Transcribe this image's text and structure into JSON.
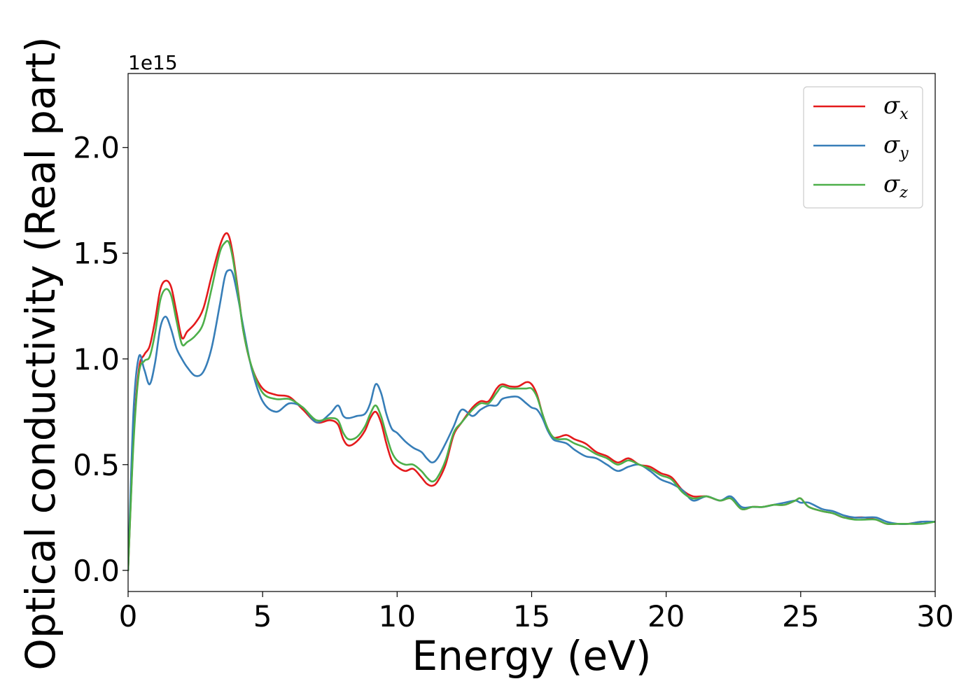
{
  "chart_data": {
    "type": "line",
    "xlabel": "Energy (eV)",
    "ylabel": "Optical conductivity (Real part)",
    "y_offset_text": "1e15",
    "xlim": [
      0,
      30
    ],
    "ylim": [
      -0.1,
      2.35
    ],
    "xticks": [
      0,
      5,
      10,
      15,
      20,
      25,
      30
    ],
    "xtick_labels": [
      "0",
      "5",
      "10",
      "15",
      "20",
      "25",
      "30"
    ],
    "yticks": [
      0.0,
      0.5,
      1.0,
      1.5,
      2.0
    ],
    "ytick_labels": [
      "0.0",
      "0.5",
      "1.0",
      "1.5",
      "2.0"
    ],
    "grid": false,
    "legend_position": "top-right",
    "series": [
      {
        "name": "σ",
        "subscript": "x",
        "color": "#e41a1c",
        "x": [
          0,
          0.2,
          0.4,
          0.6,
          0.8,
          1.0,
          1.2,
          1.4,
          1.6,
          1.8,
          2.0,
          2.2,
          2.5,
          2.8,
          3.1,
          3.4,
          3.6,
          3.75,
          3.9,
          4.1,
          4.3,
          4.6,
          5.0,
          5.5,
          6.0,
          6.5,
          7.0,
          7.5,
          7.8,
          8.0,
          8.2,
          8.5,
          8.8,
          9.0,
          9.2,
          9.4,
          9.6,
          9.8,
          10.0,
          10.3,
          10.6,
          10.9,
          11.1,
          11.3,
          11.5,
          11.8,
          12.1,
          12.4,
          12.8,
          13.1,
          13.4,
          13.7,
          13.9,
          14.2,
          14.5,
          14.8,
          15.0,
          15.2,
          15.4,
          15.6,
          15.8,
          16.0,
          16.3,
          16.6,
          17.0,
          17.4,
          17.8,
          18.2,
          18.6,
          19.0,
          19.4,
          19.8,
          20.2,
          20.6,
          21.0,
          21.5,
          22.0,
          22.4,
          22.8,
          23.2,
          23.6,
          24.0,
          24.4,
          24.8,
          25.0,
          25.3,
          25.8,
          26.2,
          26.6,
          27.0,
          27.4,
          27.8,
          28.2,
          28.6,
          29.0,
          29.5,
          30.0
        ],
        "values": [
          0.0,
          0.62,
          0.95,
          1.02,
          1.06,
          1.18,
          1.33,
          1.37,
          1.34,
          1.22,
          1.1,
          1.13,
          1.17,
          1.24,
          1.39,
          1.53,
          1.59,
          1.58,
          1.49,
          1.31,
          1.12,
          0.96,
          0.86,
          0.83,
          0.82,
          0.76,
          0.7,
          0.71,
          0.69,
          0.62,
          0.59,
          0.61,
          0.66,
          0.72,
          0.75,
          0.7,
          0.6,
          0.52,
          0.49,
          0.47,
          0.48,
          0.44,
          0.41,
          0.4,
          0.42,
          0.5,
          0.64,
          0.7,
          0.77,
          0.8,
          0.8,
          0.86,
          0.88,
          0.87,
          0.87,
          0.89,
          0.88,
          0.83,
          0.74,
          0.67,
          0.63,
          0.63,
          0.64,
          0.62,
          0.6,
          0.56,
          0.54,
          0.51,
          0.53,
          0.5,
          0.49,
          0.46,
          0.44,
          0.38,
          0.35,
          0.35,
          0.33,
          0.34,
          0.29,
          0.3,
          0.3,
          0.31,
          0.31,
          0.33,
          0.34,
          0.3,
          0.28,
          0.27,
          0.25,
          0.25,
          0.25,
          0.24,
          0.22,
          0.22,
          0.22,
          0.23,
          0.23
        ]
      },
      {
        "name": "σ",
        "subscript": "y",
        "color": "#377eb8",
        "x": [
          0,
          0.2,
          0.4,
          0.6,
          0.8,
          1.0,
          1.2,
          1.4,
          1.6,
          1.8,
          2.0,
          2.2,
          2.5,
          2.8,
          3.1,
          3.4,
          3.6,
          3.75,
          3.9,
          4.1,
          4.3,
          4.6,
          5.0,
          5.5,
          6.0,
          6.5,
          7.0,
          7.5,
          7.8,
          8.0,
          8.2,
          8.5,
          8.8,
          9.0,
          9.2,
          9.4,
          9.6,
          9.8,
          10.0,
          10.3,
          10.6,
          10.9,
          11.1,
          11.3,
          11.5,
          11.8,
          12.1,
          12.4,
          12.8,
          13.1,
          13.4,
          13.7,
          13.9,
          14.2,
          14.5,
          14.8,
          15.0,
          15.2,
          15.4,
          15.6,
          15.8,
          16.0,
          16.3,
          16.6,
          17.0,
          17.4,
          17.8,
          18.2,
          18.6,
          19.0,
          19.4,
          19.8,
          20.2,
          20.6,
          21.0,
          21.5,
          22.0,
          22.4,
          22.8,
          23.2,
          23.6,
          24.0,
          24.4,
          24.8,
          25.0,
          25.3,
          25.8,
          26.2,
          26.6,
          27.0,
          27.4,
          27.8,
          28.2,
          28.6,
          29.0,
          29.5,
          30.0
        ],
        "values": [
          0.0,
          0.75,
          1.01,
          0.95,
          0.88,
          0.98,
          1.15,
          1.2,
          1.14,
          1.05,
          1.0,
          0.96,
          0.92,
          0.94,
          1.05,
          1.25,
          1.39,
          1.42,
          1.4,
          1.28,
          1.14,
          0.95,
          0.8,
          0.75,
          0.79,
          0.77,
          0.7,
          0.74,
          0.78,
          0.73,
          0.72,
          0.73,
          0.74,
          0.79,
          0.88,
          0.84,
          0.74,
          0.67,
          0.65,
          0.61,
          0.58,
          0.56,
          0.53,
          0.51,
          0.53,
          0.6,
          0.68,
          0.76,
          0.73,
          0.76,
          0.78,
          0.78,
          0.81,
          0.82,
          0.82,
          0.79,
          0.77,
          0.76,
          0.72,
          0.66,
          0.62,
          0.61,
          0.6,
          0.57,
          0.54,
          0.53,
          0.5,
          0.47,
          0.49,
          0.5,
          0.47,
          0.43,
          0.41,
          0.38,
          0.33,
          0.35,
          0.33,
          0.35,
          0.3,
          0.3,
          0.3,
          0.31,
          0.32,
          0.33,
          0.32,
          0.32,
          0.29,
          0.28,
          0.26,
          0.25,
          0.25,
          0.25,
          0.23,
          0.22,
          0.22,
          0.23,
          0.23
        ]
      },
      {
        "name": "σ",
        "subscript": "z",
        "color": "#4daf4a",
        "x": [
          0,
          0.2,
          0.4,
          0.6,
          0.8,
          1.0,
          1.2,
          1.4,
          1.6,
          1.8,
          2.0,
          2.2,
          2.5,
          2.8,
          3.1,
          3.4,
          3.6,
          3.75,
          3.9,
          4.1,
          4.3,
          4.6,
          5.0,
          5.5,
          6.0,
          6.5,
          7.0,
          7.5,
          7.8,
          8.0,
          8.2,
          8.5,
          8.8,
          9.0,
          9.2,
          9.4,
          9.6,
          9.8,
          10.0,
          10.3,
          10.6,
          10.9,
          11.1,
          11.3,
          11.5,
          11.8,
          12.1,
          12.4,
          12.8,
          13.1,
          13.4,
          13.7,
          13.9,
          14.2,
          14.5,
          14.8,
          15.0,
          15.2,
          15.4,
          15.6,
          15.8,
          16.0,
          16.3,
          16.6,
          17.0,
          17.4,
          17.8,
          18.2,
          18.6,
          19.0,
          19.4,
          19.8,
          20.2,
          20.6,
          21.0,
          21.5,
          22.0,
          22.4,
          22.8,
          23.2,
          23.6,
          24.0,
          24.4,
          24.8,
          25.0,
          25.3,
          25.8,
          26.2,
          26.6,
          27.0,
          27.4,
          27.8,
          28.2,
          28.6,
          29.0,
          29.5,
          30.0
        ],
        "values": [
          0.0,
          0.6,
          0.93,
          0.99,
          1.01,
          1.12,
          1.28,
          1.33,
          1.3,
          1.18,
          1.07,
          1.08,
          1.11,
          1.17,
          1.33,
          1.5,
          1.55,
          1.55,
          1.47,
          1.3,
          1.12,
          0.96,
          0.84,
          0.81,
          0.81,
          0.77,
          0.71,
          0.72,
          0.71,
          0.65,
          0.62,
          0.63,
          0.68,
          0.74,
          0.78,
          0.73,
          0.64,
          0.56,
          0.52,
          0.5,
          0.5,
          0.47,
          0.44,
          0.42,
          0.44,
          0.52,
          0.65,
          0.7,
          0.76,
          0.79,
          0.79,
          0.84,
          0.87,
          0.86,
          0.86,
          0.86,
          0.86,
          0.82,
          0.74,
          0.67,
          0.63,
          0.62,
          0.62,
          0.6,
          0.58,
          0.55,
          0.53,
          0.5,
          0.52,
          0.5,
          0.48,
          0.45,
          0.43,
          0.37,
          0.34,
          0.35,
          0.33,
          0.34,
          0.29,
          0.3,
          0.3,
          0.31,
          0.31,
          0.33,
          0.34,
          0.3,
          0.28,
          0.27,
          0.25,
          0.24,
          0.24,
          0.24,
          0.22,
          0.22,
          0.22,
          0.22,
          0.23
        ]
      }
    ]
  }
}
